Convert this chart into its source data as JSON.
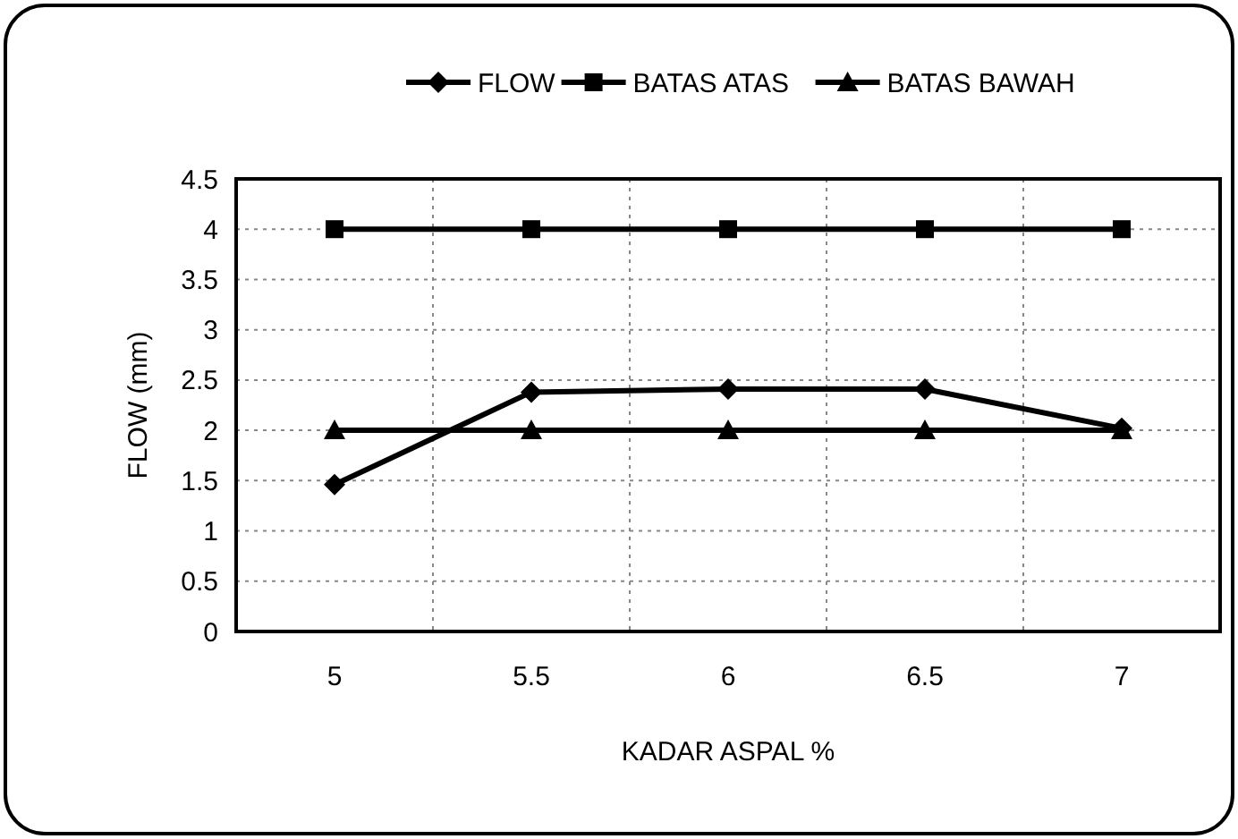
{
  "chart_data": {
    "type": "line",
    "xlabel": "KADAR ASPAL %",
    "ylabel": "FLOW (mm)",
    "categories": [
      "5",
      "5.5",
      "6",
      "6.5",
      "7"
    ],
    "series": [
      {
        "name": "FLOW",
        "color": "#000000",
        "marker": "diamond",
        "values": [
          1.46,
          2.38,
          2.41,
          2.41,
          2.02
        ]
      },
      {
        "name": "BATAS ATAS",
        "color": "#000000",
        "marker": "square",
        "values": [
          4,
          4,
          4,
          4,
          4
        ]
      },
      {
        "name": "BATAS BAWAH",
        "color": "#000000",
        "marker": "triangle",
        "values": [
          2,
          2,
          2,
          2,
          2
        ]
      }
    ],
    "ylim": [
      0,
      4.5
    ],
    "yticks": [
      0,
      0.5,
      1,
      1.5,
      2,
      2.5,
      3,
      3.5,
      4,
      4.5
    ],
    "grid": true,
    "legend": "top",
    "line_style": "solid"
  }
}
